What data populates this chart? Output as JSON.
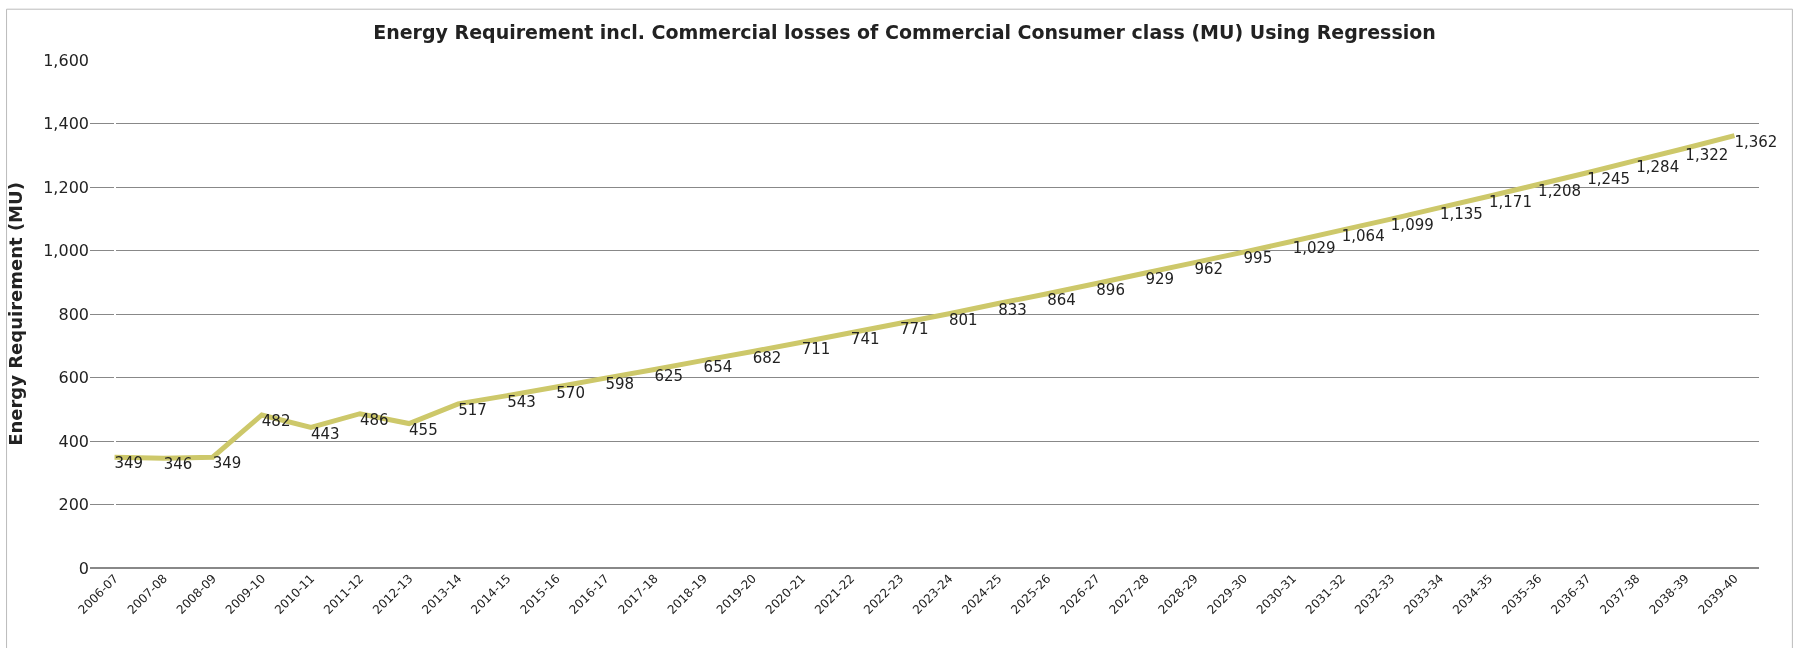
{
  "chart_data": {
    "type": "line",
    "title": "Energy Requirement incl. Commercial losses of Commercial Consumer class (MU) Using Regression",
    "ylabel": "Energy Requirement (MU)",
    "categories": [
      "2006-07",
      "2007-08",
      "2008-09",
      "2009-10",
      "2010-11",
      "2011-12",
      "2012-13",
      "2013-14",
      "2014-15",
      "2015-16",
      "2016-17",
      "2017-18",
      "2018-19",
      "2019-20",
      "2020-21",
      "2021-22",
      "2022-23",
      "2023-24",
      "2024-25",
      "2025-26",
      "2026-27",
      "2027-28",
      "2028-29",
      "2029-30",
      "2030-31",
      "2031-32",
      "2032-33",
      "2033-34",
      "2034-35",
      "2035-36",
      "2036-37",
      "2037-38",
      "2038-39",
      "2039-40"
    ],
    "values": [
      349,
      346,
      349,
      482,
      443,
      486,
      455,
      517,
      543,
      570,
      598,
      625,
      654,
      682,
      711,
      741,
      771,
      801,
      833,
      864,
      896,
      929,
      962,
      995,
      1029,
      1064,
      1099,
      1135,
      1171,
      1208,
      1245,
      1284,
      1322,
      1362
    ],
    "value_labels": [
      "349",
      "346",
      "349",
      "482",
      "443",
      "486",
      "455",
      "517",
      "543",
      "570",
      "598",
      "625",
      "654",
      "682",
      "711",
      "741",
      "771",
      "801",
      "833",
      "864",
      "896",
      "929",
      "962",
      "995",
      "1,029",
      "1,064",
      "1,099",
      "1,135",
      "1,171",
      "1,208",
      "1,245",
      "1,284",
      "1,322",
      "1,362"
    ],
    "color": "#cdc86a",
    "ylim": [
      0,
      1600
    ],
    "yticks": [
      0,
      200,
      400,
      600,
      800,
      {
        "value": 1000,
        "label": "1,000"
      },
      {
        "value": 1200,
        "label": "1,200"
      },
      {
        "value": 1400,
        "label": "1,400"
      },
      {
        "value": 1600,
        "label": "1,600"
      }
    ],
    "grid": "y",
    "marker": "none",
    "line_style": "solid"
  }
}
